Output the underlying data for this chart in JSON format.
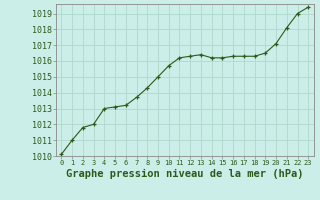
{
  "x": [
    0,
    1,
    2,
    3,
    4,
    5,
    6,
    7,
    8,
    9,
    10,
    11,
    12,
    13,
    14,
    15,
    16,
    17,
    18,
    19,
    20,
    21,
    22,
    23
  ],
  "y": [
    1010.1,
    1011.0,
    1011.8,
    1012.0,
    1013.0,
    1013.1,
    1013.2,
    1013.7,
    1014.3,
    1015.0,
    1015.7,
    1016.2,
    1016.3,
    1016.4,
    1016.2,
    1016.2,
    1016.3,
    1016.3,
    1016.3,
    1016.5,
    1017.1,
    1018.1,
    1019.0,
    1019.4
  ],
  "ylim": [
    1010,
    1019.6
  ],
  "xlim": [
    -0.5,
    23.5
  ],
  "yticks": [
    1010,
    1011,
    1012,
    1013,
    1014,
    1015,
    1016,
    1017,
    1018,
    1019
  ],
  "xticks": [
    0,
    1,
    2,
    3,
    4,
    5,
    6,
    7,
    8,
    9,
    10,
    11,
    12,
    13,
    14,
    15,
    16,
    17,
    18,
    19,
    20,
    21,
    22,
    23
  ],
  "xlabel": "Graphe pression niveau de la mer (hPa)",
  "line_color": "#2d5a1b",
  "marker": "+",
  "marker_color": "#2d5a1b",
  "bg_color": "#cceee8",
  "grid_color": "#b0d8cc",
  "tick_label_color": "#2d5a1b",
  "xlabel_color": "#2d5a1b",
  "xlabel_fontsize": 7.5,
  "ytick_fontsize": 6.0,
  "xtick_fontsize": 5.0,
  "spine_color": "#888888"
}
